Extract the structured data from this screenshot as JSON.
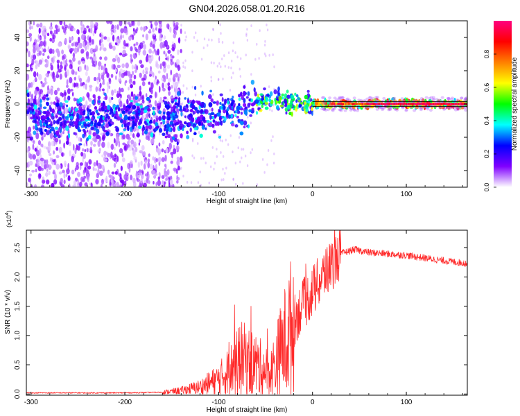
{
  "title": "GN04.2026.058.01.20.R16",
  "chart_data": [
    {
      "type": "heatmap",
      "title": "GN04.2026.058.01.20.R16",
      "xlabel": "Height of straight line (km)",
      "ylabel": "Frequency (Hz)",
      "xlim": [
        -305,
        165
      ],
      "ylim": [
        -50,
        50
      ],
      "x_ticks": [
        -300,
        -200,
        -100,
        0,
        100
      ],
      "x_tick_labels": [
        "-300",
        "-200",
        "-100",
        "0",
        "100"
      ],
      "y_ticks": [
        -40,
        -20,
        0,
        20,
        40
      ],
      "y_tick_labels": [
        "-40",
        "-20",
        "0",
        "20",
        "40"
      ],
      "colorbar": {
        "label": "Normalized spectral amplitude",
        "range": [
          0,
          1
        ],
        "ticks": [
          0.0,
          0.2,
          0.4,
          0.6,
          0.8
        ],
        "tick_labels": [
          "0.0",
          "0.2",
          "0.4",
          "0.6",
          "0.8"
        ],
        "colors": [
          "#ffffff",
          "#8000ff",
          "#0000ff",
          "#00ffff",
          "#00ff00",
          "#ffff00",
          "#ff8000",
          "#ff0000",
          "#ff0080"
        ]
      },
      "ridge": [
        {
          "x": -300,
          "f": -8
        },
        {
          "x": -250,
          "f": -10
        },
        {
          "x": -200,
          "f": -8
        },
        {
          "x": -150,
          "f": -7
        },
        {
          "x": -100,
          "f": -6
        },
        {
          "x": -75,
          "f": -3
        },
        {
          "x": -50,
          "f": 3
        },
        {
          "x": -25,
          "f": 1
        },
        {
          "x": 0,
          "f": 0
        },
        {
          "x": 50,
          "f": 0
        },
        {
          "x": 100,
          "f": 0
        },
        {
          "x": 165,
          "f": 0
        }
      ],
      "noise_edge_x": -140
    },
    {
      "type": "line",
      "xlabel": "Height of straight line (km)",
      "ylabel": "SNR (10 * v/v)",
      "y_multiplier": "(x10",
      "y_exponent": "4",
      "y_multiplier_close": ")",
      "xlim": [
        -305,
        165
      ],
      "ylim": [
        -0.02,
        2.8
      ],
      "x_ticks": [
        -300,
        -200,
        -100,
        0,
        100
      ],
      "x_tick_labels": [
        "-300",
        "-200",
        "-100",
        "0",
        "100"
      ],
      "y_ticks": [
        0.0,
        0.5,
        1.0,
        1.5,
        2.0,
        2.5
      ],
      "y_tick_labels": [
        "0.0",
        "0.5",
        "1.0",
        "1.5",
        "2.0",
        "2.5"
      ],
      "series": [
        {
          "name": "SNR",
          "color": "#ff2a2a",
          "envelope": [
            {
              "x": -305,
              "y": 0.02
            },
            {
              "x": -200,
              "y": 0.02
            },
            {
              "x": -160,
              "y": 0.03
            },
            {
              "x": -140,
              "y": 0.06
            },
            {
              "x": -120,
              "y": 0.12
            },
            {
              "x": -100,
              "y": 0.25
            },
            {
              "x": -85,
              "y": 0.45
            },
            {
              "x": -75,
              "y": 0.6
            },
            {
              "x": -60,
              "y": 0.5
            },
            {
              "x": -45,
              "y": 0.35
            },
            {
              "x": -35,
              "y": 0.7
            },
            {
              "x": -25,
              "y": 1.05
            },
            {
              "x": -15,
              "y": 1.4
            },
            {
              "x": 0,
              "y": 1.75
            },
            {
              "x": 15,
              "y": 2.1
            },
            {
              "x": 30,
              "y": 2.4
            },
            {
              "x": 45,
              "y": 2.47
            },
            {
              "x": 60,
              "y": 2.42
            },
            {
              "x": 100,
              "y": 2.37
            },
            {
              "x": 130,
              "y": 2.3
            },
            {
              "x": 165,
              "y": 2.23
            }
          ]
        }
      ]
    }
  ]
}
